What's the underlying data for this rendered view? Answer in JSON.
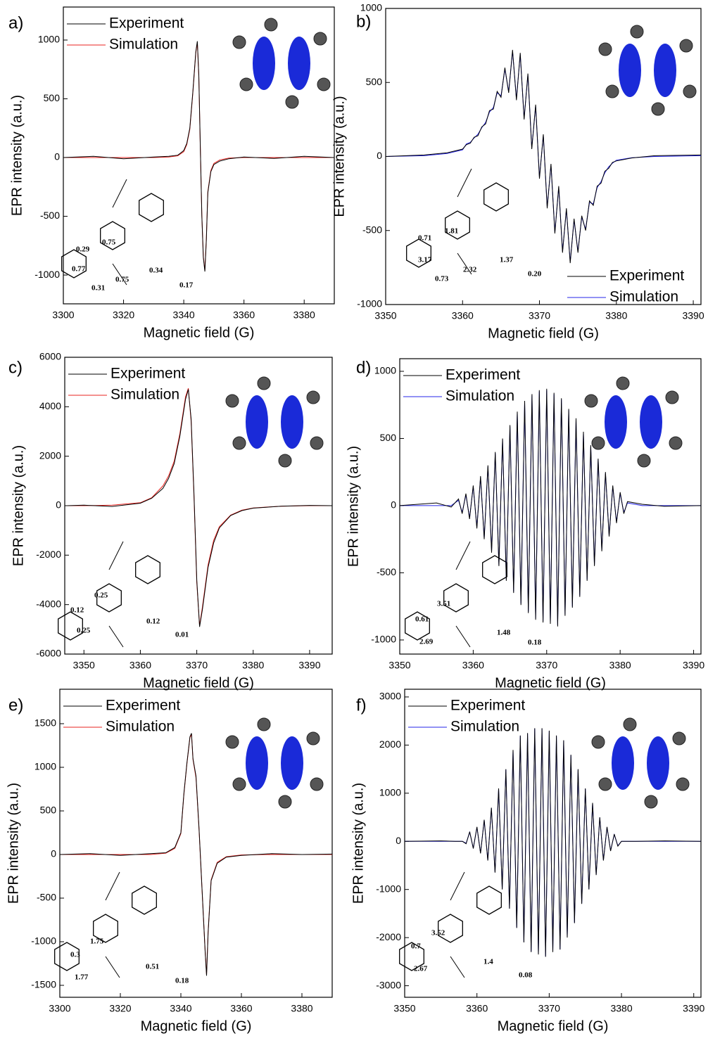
{
  "chart_data": [
    {
      "type": "line",
      "label": "a)",
      "x_label": "Magnetic field (G)",
      "y_label": "EPR intensity (a.u.)",
      "legend": "upper left",
      "x": [
        3300,
        3310,
        3320,
        3330,
        3335,
        3338,
        3340,
        3341,
        3342,
        3343,
        3344,
        3344.5,
        3345,
        3345.5,
        3346,
        3346.5,
        3347,
        3347.5,
        3348,
        3349,
        3350,
        3352,
        3355,
        3360,
        3370,
        3380,
        3390
      ],
      "series": [
        {
          "name": "Experiment",
          "color": "#000000",
          "values": [
            0,
            10,
            -10,
            5,
            10,
            20,
            60,
            120,
            250,
            550,
            900,
            990,
            700,
            100,
            -500,
            -850,
            -970,
            -700,
            -300,
            -120,
            -60,
            -30,
            -10,
            5,
            -8,
            10,
            0
          ]
        },
        {
          "name": "Simulation",
          "color": "#e8231f",
          "values": [
            0,
            0,
            0,
            0,
            5,
            15,
            50,
            110,
            240,
            540,
            890,
            980,
            690,
            90,
            -490,
            -840,
            -960,
            -690,
            -290,
            -110,
            -50,
            -20,
            -5,
            0,
            0,
            0,
            0
          ]
        }
      ],
      "xlim": [
        3300,
        3390
      ],
      "xticks": [
        3300,
        3320,
        3340,
        3360,
        3380
      ],
      "ylim": [
        -1245,
        1281
      ],
      "yticks": [
        -1000,
        -500,
        0,
        500,
        1000
      ],
      "annotations": [
        "0.29",
        "0.75",
        "0.77",
        "0.31",
        "0.75",
        "0.34",
        "0.17"
      ]
    },
    {
      "type": "line",
      "label": "b)",
      "x_label": "Magnetic field (G)",
      "y_label": "EPR intensity (a.u.)",
      "legend": "lower right",
      "x": [
        3350,
        3355,
        3358,
        3360,
        3360.5,
        3361,
        3361.5,
        3362,
        3362.5,
        3363,
        3363.5,
        3364,
        3364.5,
        3365,
        3365.5,
        3366,
        3366.5,
        3367,
        3367.5,
        3368,
        3368.5,
        3369,
        3369.5,
        3370,
        3370.5,
        3371,
        3371.5,
        3372,
        3372.5,
        3373,
        3373.5,
        3374,
        3374.5,
        3375,
        3375.5,
        3376,
        3376.5,
        3377,
        3377.5,
        3378,
        3378.5,
        3379,
        3379.5,
        3380,
        3382,
        3385,
        3391
      ],
      "series": [
        {
          "name": "Experiment",
          "color": "#000000",
          "values": [
            0,
            10,
            25,
            50,
            80,
            90,
            130,
            140,
            200,
            220,
            310,
            320,
            440,
            400,
            600,
            430,
            720,
            380,
            700,
            250,
            560,
            50,
            350,
            -150,
            150,
            -350,
            -50,
            -520,
            -200,
            -650,
            -350,
            -720,
            -420,
            -650,
            -400,
            -500,
            -300,
            -330,
            -200,
            -180,
            -100,
            -80,
            -40,
            -30,
            -10,
            5,
            10
          ]
        },
        {
          "name": "Simulation",
          "color": "#2424e8",
          "values": [
            0,
            5,
            20,
            45,
            85,
            95,
            125,
            150,
            195,
            230,
            300,
            330,
            430,
            410,
            590,
            440,
            710,
            390,
            690,
            260,
            550,
            60,
            340,
            -140,
            140,
            -340,
            -60,
            -510,
            -210,
            -640,
            -360,
            -710,
            -430,
            -640,
            -410,
            -490,
            -310,
            -320,
            -210,
            -170,
            -110,
            -70,
            -45,
            -25,
            -8,
            0,
            5
          ]
        }
      ],
      "xlim": [
        3350,
        3391
      ],
      "xticks": [
        3350,
        3360,
        3370,
        3380,
        3390
      ],
      "ylim": [
        -1000,
        1000
      ],
      "yticks": [
        -1000,
        -500,
        0,
        500,
        1000
      ],
      "annotations": [
        "1.81",
        "0.71",
        "3.17",
        "0.73",
        "2.32",
        "1.37",
        "0.20"
      ]
    },
    {
      "type": "line",
      "label": "c)",
      "x_label": "Magnetic field (G)",
      "y_label": "EPR intensity (a.u.)",
      "legend": "upper left",
      "x": [
        3347,
        3350,
        3355,
        3360,
        3362,
        3364,
        3365,
        3366,
        3367,
        3368,
        3368.5,
        3369,
        3369.5,
        3370,
        3370.5,
        3371,
        3372,
        3373,
        3374,
        3376,
        3378,
        3380,
        3385,
        3390,
        3394
      ],
      "series": [
        {
          "name": "Experiment",
          "color": "#000000",
          "values": [
            0,
            20,
            -30,
            100,
            300,
            700,
            1100,
            1700,
            2800,
            4300,
            4700,
            3500,
            500,
            -3000,
            -4900,
            -4200,
            -2500,
            -1500,
            -900,
            -400,
            -200,
            -100,
            -20,
            10,
            0
          ]
        },
        {
          "name": "Simulation",
          "color": "#e8231f",
          "values": [
            0,
            0,
            20,
            120,
            320,
            800,
            1200,
            1800,
            2900,
            4400,
            4750,
            3400,
            400,
            -3100,
            -4850,
            -4100,
            -2400,
            -1400,
            -850,
            -380,
            -180,
            -90,
            -20,
            0,
            0
          ]
        }
      ],
      "xlim": [
        3346.6,
        3394
      ],
      "xticks": [
        3350,
        3360,
        3370,
        3380,
        3390
      ],
      "ylim": [
        -6000,
        6000
      ],
      "yticks": [
        -6000,
        -4000,
        -2000,
        0,
        2000,
        4000,
        6000
      ],
      "annotations": [
        "0.25",
        "0.12",
        "0.25",
        "0.12",
        "0.01"
      ]
    },
    {
      "type": "line",
      "label": "d)",
      "x_label": "Magnetic field (G)",
      "y_label": "EPR intensity (a.u.)",
      "legend": "upper left",
      "x": [
        3350,
        3355,
        3357,
        3358,
        3358.5,
        3359,
        3359.5,
        3360,
        3360.5,
        3361,
        3361.5,
        3362,
        3362.5,
        3363,
        3363.5,
        3364,
        3364.5,
        3365,
        3365.5,
        3366,
        3366.5,
        3367,
        3367.5,
        3368,
        3368.5,
        3369,
        3369.5,
        3370,
        3370.5,
        3371,
        3371.5,
        3372,
        3372.5,
        3373,
        3373.5,
        3374,
        3374.5,
        3375,
        3375.5,
        3376,
        3376.5,
        3377,
        3377.5,
        3378,
        3378.5,
        3379,
        3379.5,
        3380,
        3380.5,
        3381,
        3383,
        3386,
        3391
      ],
      "series": [
        {
          "name": "Experiment",
          "color": "#000000",
          "values": [
            0,
            20,
            -10,
            50,
            -60,
            90,
            -100,
            150,
            -170,
            220,
            -250,
            300,
            -350,
            400,
            -450,
            500,
            -560,
            600,
            -650,
            700,
            -740,
            780,
            -800,
            830,
            -850,
            860,
            -870,
            870,
            -880,
            840,
            -900,
            800,
            -820,
            720,
            -760,
            650,
            -680,
            550,
            -560,
            450,
            -450,
            350,
            -340,
            250,
            -230,
            150,
            -130,
            100,
            -60,
            30,
            10,
            -5,
            0
          ]
        },
        {
          "name": "Simulation",
          "color": "#2424e8",
          "values": [
            0,
            0,
            0,
            40,
            -50,
            80,
            -90,
            140,
            -160,
            210,
            -240,
            290,
            -340,
            390,
            -440,
            490,
            -550,
            590,
            -640,
            690,
            -730,
            770,
            -790,
            820,
            -840,
            850,
            -860,
            860,
            -870,
            830,
            -890,
            790,
            -810,
            710,
            -750,
            640,
            -670,
            540,
            -550,
            440,
            -440,
            340,
            -330,
            240,
            -220,
            140,
            -120,
            90,
            -50,
            20,
            0,
            0,
            0
          ]
        }
      ],
      "xlim": [
        3350,
        3391
      ],
      "xticks": [
        3350,
        3360,
        3370,
        3380,
        3390
      ],
      "ylim": [
        -1105,
        1094
      ],
      "yticks": [
        -1000,
        -500,
        0,
        500,
        1000
      ],
      "annotations": [
        "3.51",
        "0.61",
        "2.69",
        "1.48",
        "0.18"
      ]
    },
    {
      "type": "line",
      "label": "e)",
      "x_label": "Magnetic field (G)",
      "y_label": "EPR intensity (a.u.)",
      "legend": "upper left",
      "x": [
        3300,
        3310,
        3320,
        3330,
        3335,
        3338,
        3340,
        3341,
        3342,
        3343,
        3343.5,
        3344,
        3345,
        3346,
        3347,
        3348,
        3348.5,
        3349,
        3350,
        3352,
        3355,
        3360,
        3370,
        3380,
        3390
      ],
      "series": [
        {
          "name": "Experiment",
          "color": "#000000",
          "values": [
            0,
            10,
            -10,
            10,
            20,
            80,
            250,
            700,
            1050,
            1350,
            1390,
            1100,
            900,
            300,
            -400,
            -1100,
            -1390,
            -900,
            -300,
            -100,
            -30,
            -10,
            10,
            0,
            5
          ]
        },
        {
          "name": "Simulation",
          "color": "#e8231f",
          "values": [
            0,
            0,
            0,
            0,
            15,
            70,
            240,
            690,
            1040,
            1340,
            1380,
            1090,
            880,
            290,
            -410,
            -1090,
            -1380,
            -890,
            -290,
            -90,
            -25,
            -5,
            0,
            0,
            0
          ]
        }
      ],
      "xlim": [
        3300,
        3390
      ],
      "xticks": [
        3300,
        3320,
        3340,
        3360,
        3380
      ],
      "ylim": [
        -1637,
        1895
      ],
      "yticks": [
        -1500,
        -1000,
        -500,
        0,
        500,
        1000,
        1500
      ],
      "annotations": [
        "1.75",
        "0.3",
        "1.77",
        "0.51",
        "0.18"
      ]
    },
    {
      "type": "line",
      "label": "f)",
      "x_label": "Magnetic field (G)",
      "y_label": "EPR intensity (a.u.)",
      "legend": "upper left",
      "x": [
        3350,
        3355,
        3357,
        3358,
        3358.5,
        3359,
        3359.5,
        3360,
        3360.5,
        3361,
        3361.5,
        3362,
        3362.5,
        3363,
        3363.5,
        3364,
        3364.5,
        3365,
        3365.5,
        3366,
        3366.5,
        3367,
        3367.5,
        3368,
        3368.5,
        3369,
        3369.5,
        3370,
        3370.5,
        3371,
        3371.5,
        3372,
        3372.5,
        3373,
        3373.5,
        3374,
        3374.5,
        3375,
        3375.5,
        3376,
        3376.5,
        3377,
        3377.5,
        3378,
        3378.5,
        3379,
        3379.5,
        3380,
        3382,
        3386,
        3391
      ],
      "series": [
        {
          "name": "Experiment",
          "color": "#000000",
          "values": [
            0,
            10,
            0,
            0,
            -50,
            200,
            -150,
            300,
            -250,
            450,
            -400,
            700,
            -650,
            1100,
            -1000,
            1500,
            -1400,
            1900,
            -1800,
            2200,
            -2100,
            2250,
            -2300,
            2350,
            -2350,
            2350,
            -2400,
            2300,
            -2300,
            2200,
            -2250,
            2100,
            -2000,
            1800,
            -1700,
            1500,
            -1300,
            1100,
            -1000,
            800,
            -700,
            500,
            -400,
            300,
            -200,
            150,
            -100,
            0,
            0,
            10,
            0
          ]
        },
        {
          "name": "Simulation",
          "color": "#2424e8",
          "values": [
            0,
            0,
            0,
            0,
            -40,
            190,
            -140,
            290,
            -240,
            440,
            -390,
            690,
            -640,
            1090,
            -990,
            1490,
            -1390,
            1890,
            -1790,
            2190,
            -2090,
            2240,
            -2290,
            2340,
            -2340,
            2340,
            -2390,
            2290,
            -2290,
            2190,
            -2240,
            2090,
            -1990,
            1790,
            -1690,
            1490,
            -1290,
            1090,
            -990,
            790,
            -690,
            490,
            -390,
            290,
            -190,
            140,
            -90,
            0,
            0,
            0,
            0
          ]
        }
      ],
      "xlim": [
        3350,
        3391
      ],
      "xticks": [
        3350,
        3360,
        3370,
        3380,
        3390
      ],
      "ylim": [
        -3240,
        3160
      ],
      "yticks": [
        -3000,
        -2000,
        -1000,
        0,
        1000,
        2000,
        3000
      ],
      "annotations": [
        "3.52",
        "0.7",
        "2.67",
        "1.4",
        "0.08"
      ]
    }
  ]
}
